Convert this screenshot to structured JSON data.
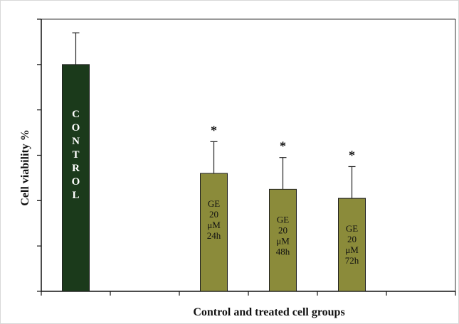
{
  "chart_data": {
    "type": "bar",
    "title": "",
    "xlabel": "Control and treated cell groups",
    "ylabel": "Cell viability %",
    "ylim": [
      0,
      60
    ],
    "grid": false,
    "categories": [
      "CONTROL",
      "",
      "GE 20 μM 24h",
      "GE 20 μM 48h",
      "GE 20 μM 72h",
      ""
    ],
    "values": [
      50,
      null,
      26,
      22.5,
      20.5,
      null
    ],
    "error_plus": [
      7,
      null,
      7,
      7,
      7,
      null
    ],
    "significance": [
      "",
      "",
      "*",
      "*",
      "*",
      ""
    ],
    "bar_colors": [
      "#1b3a1b",
      null,
      "#8b8b3a",
      "#8b8b3a",
      "#8b8b3a",
      null
    ],
    "bar_label_lines": [
      [
        "C",
        "O",
        "N",
        "T",
        "R",
        "O",
        "L"
      ],
      [],
      [
        "GE",
        "20",
        "μM",
        "24h"
      ],
      [
        "GE",
        "20",
        "μM",
        "48h"
      ],
      [
        "GE",
        "20",
        "μM",
        "72h"
      ],
      []
    ]
  }
}
